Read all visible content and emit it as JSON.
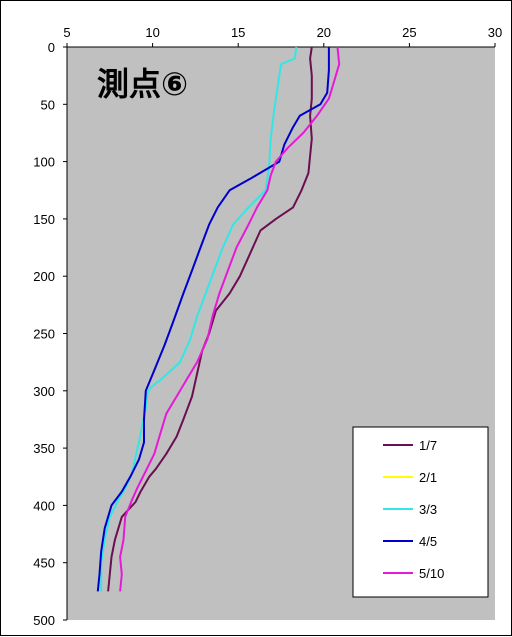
{
  "chart_data": {
    "type": "line",
    "title": "測点⑥",
    "xlabel": "",
    "ylabel": "",
    "x_axis_position": "top",
    "y_inverted": true,
    "xlim": [
      5,
      30
    ],
    "ylim": [
      0,
      500
    ],
    "xticks": [
      "5",
      "10",
      "15",
      "20",
      "25",
      "30"
    ],
    "yticks": [
      "0",
      "50",
      "100",
      "150",
      "200",
      "250",
      "300",
      "350",
      "400",
      "450",
      "500"
    ],
    "grid": false,
    "plot_background": "#c0c0c0",
    "legend_position": "bottom-right",
    "series": [
      {
        "name": "1/7",
        "color": "#6b0e52",
        "points": [
          [
            19.3,
            0
          ],
          [
            19.2,
            10
          ],
          [
            19.3,
            25
          ],
          [
            19.3,
            45
          ],
          [
            19.2,
            60
          ],
          [
            19.3,
            80
          ],
          [
            19.2,
            95
          ],
          [
            19.1,
            110
          ],
          [
            18.7,
            125
          ],
          [
            18.2,
            140
          ],
          [
            17.2,
            150
          ],
          [
            16.3,
            160
          ],
          [
            15.7,
            180
          ],
          [
            15.1,
            200
          ],
          [
            14.5,
            215
          ],
          [
            13.7,
            230
          ],
          [
            13.3,
            250
          ],
          [
            12.9,
            265
          ],
          [
            12.6,
            285
          ],
          [
            12.3,
            305
          ],
          [
            11.8,
            325
          ],
          [
            11.4,
            340
          ],
          [
            10.8,
            355
          ],
          [
            10.2,
            368
          ],
          [
            9.8,
            375
          ],
          [
            9.3,
            388
          ],
          [
            9.0,
            397
          ],
          [
            8.2,
            410
          ],
          [
            7.8,
            430
          ],
          [
            7.6,
            445
          ],
          [
            7.5,
            460
          ],
          [
            7.4,
            475
          ]
        ]
      },
      {
        "name": "2/1",
        "color": "#ffff00",
        "points": []
      },
      {
        "name": "3/3",
        "color": "#33e6e6",
        "points": [
          [
            18.4,
            0
          ],
          [
            18.3,
            10
          ],
          [
            17.5,
            15
          ],
          [
            17.3,
            35
          ],
          [
            17.1,
            55
          ],
          [
            16.9,
            80
          ],
          [
            16.8,
            105
          ],
          [
            16.6,
            125
          ],
          [
            15.6,
            140
          ],
          [
            14.7,
            155
          ],
          [
            14.1,
            175
          ],
          [
            13.6,
            195
          ],
          [
            13.1,
            215
          ],
          [
            12.6,
            235
          ],
          [
            12.2,
            255
          ],
          [
            11.6,
            275
          ],
          [
            10.5,
            290
          ],
          [
            9.9,
            297
          ],
          [
            9.7,
            302
          ],
          [
            9.6,
            315
          ],
          [
            9.4,
            330
          ],
          [
            9.2,
            345
          ],
          [
            9.0,
            358
          ],
          [
            8.8,
            372
          ],
          [
            8.4,
            385
          ],
          [
            8.0,
            395
          ],
          [
            7.5,
            410
          ],
          [
            7.2,
            430
          ],
          [
            7.0,
            450
          ],
          [
            7.0,
            465
          ],
          [
            7.0,
            475
          ]
        ]
      },
      {
        "name": "4/5",
        "color": "#0000cc",
        "points": [
          [
            20.3,
            0
          ],
          [
            20.3,
            20
          ],
          [
            20.2,
            40
          ],
          [
            19.8,
            50
          ],
          [
            18.6,
            60
          ],
          [
            18.2,
            70
          ],
          [
            17.7,
            85
          ],
          [
            17.4,
            100
          ],
          [
            15.7,
            115
          ],
          [
            14.5,
            125
          ],
          [
            13.8,
            140
          ],
          [
            13.3,
            155
          ],
          [
            12.8,
            175
          ],
          [
            12.3,
            195
          ],
          [
            11.8,
            215
          ],
          [
            11.2,
            240
          ],
          [
            10.7,
            260
          ],
          [
            10.1,
            282
          ],
          [
            9.6,
            300
          ],
          [
            9.5,
            325
          ],
          [
            9.5,
            345
          ],
          [
            9.2,
            360
          ],
          [
            8.7,
            375
          ],
          [
            8.2,
            388
          ],
          [
            7.6,
            400
          ],
          [
            7.2,
            420
          ],
          [
            7.0,
            440
          ],
          [
            6.9,
            460
          ],
          [
            6.8,
            475
          ]
        ]
      },
      {
        "name": "5/10",
        "color": "#e619d9",
        "points": [
          [
            20.8,
            0
          ],
          [
            20.9,
            15
          ],
          [
            20.6,
            30
          ],
          [
            20.3,
            45
          ],
          [
            19.6,
            60
          ],
          [
            18.8,
            75
          ],
          [
            17.9,
            88
          ],
          [
            17.2,
            100
          ],
          [
            16.9,
            112
          ],
          [
            16.7,
            125
          ],
          [
            16.1,
            140
          ],
          [
            15.6,
            155
          ],
          [
            14.9,
            175
          ],
          [
            14.4,
            195
          ],
          [
            13.9,
            215
          ],
          [
            13.5,
            235
          ],
          [
            13.2,
            255
          ],
          [
            12.6,
            275
          ],
          [
            12.0,
            290
          ],
          [
            11.4,
            305
          ],
          [
            10.8,
            320
          ],
          [
            10.4,
            340
          ],
          [
            10.1,
            355
          ],
          [
            9.6,
            370
          ],
          [
            9.1,
            385
          ],
          [
            8.8,
            395
          ],
          [
            8.4,
            410
          ],
          [
            8.3,
            430
          ],
          [
            8.1,
            445
          ],
          [
            8.2,
            460
          ],
          [
            8.1,
            475
          ]
        ]
      }
    ]
  }
}
